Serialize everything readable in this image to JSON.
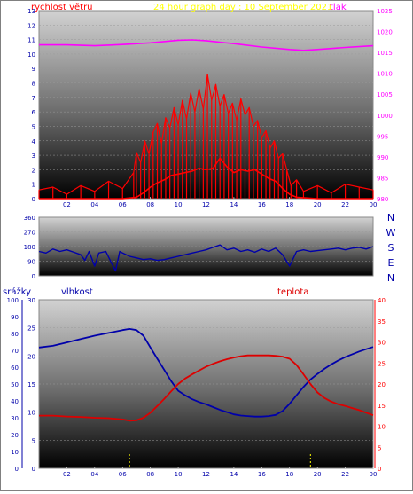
{
  "colors": {
    "wind_speed": "#ff0000",
    "wind_gust": "#ff0000",
    "pressure": "#ff00ff",
    "direction": "#0000aa",
    "humidity": "#0000aa",
    "temperature": "#dd0000",
    "rain": "#ffff00",
    "label_red": "#ff0000",
    "label_yellow": "#ffff00",
    "label_magenta": "#ff00ff",
    "label_blue": "#0000aa",
    "tick_text": "#0000aa"
  },
  "chart_data": [
    {
      "type": "line",
      "panel": "wind",
      "title": "24 hour graph day : 10 September 2021",
      "left_label": "rychlost větru",
      "right_label": "tlak",
      "x_ticks": [
        "02",
        "04",
        "06",
        "08",
        "10",
        "12",
        "14",
        "16",
        "18",
        "20",
        "22",
        "00"
      ],
      "ylim_left": [
        0,
        13
      ],
      "y_ticks_left": [
        "0",
        "1",
        "2",
        "3",
        "4",
        "5",
        "6",
        "7",
        "8",
        "9",
        "10",
        "11",
        "12",
        "13"
      ],
      "ylim_right": [
        980,
        1025
      ],
      "y_ticks_right": [
        "980",
        "985",
        "990",
        "995",
        "1000",
        "1005",
        "1010",
        "1015",
        "1020",
        "1025"
      ],
      "x_range_hours": [
        0,
        24
      ],
      "series": [
        {
          "key": "pressure",
          "axis": "right",
          "x": [
            0,
            2,
            4,
            6,
            8,
            10,
            11,
            12,
            14,
            16,
            18,
            19,
            20,
            22,
            24
          ],
          "y": [
            1016.8,
            1016.8,
            1016.6,
            1016.9,
            1017.3,
            1017.9,
            1018.0,
            1017.8,
            1017.1,
            1016.3,
            1015.7,
            1015.5,
            1015.7,
            1016.2,
            1016.6
          ]
        },
        {
          "key": "wind_gust",
          "axis": "left",
          "x": [
            0,
            1,
            2,
            3,
            4,
            5,
            6,
            6.8,
            7.0,
            7.3,
            7.6,
            7.9,
            8.2,
            8.5,
            8.8,
            9.1,
            9.4,
            9.7,
            10.0,
            10.3,
            10.6,
            10.9,
            11.2,
            11.5,
            11.8,
            12.1,
            12.4,
            12.7,
            13.0,
            13.3,
            13.6,
            13.9,
            14.2,
            14.5,
            14.8,
            15.1,
            15.4,
            15.7,
            16.0,
            16.3,
            16.6,
            16.9,
            17.2,
            17.5,
            17.8,
            18.1,
            18.5,
            19,
            20,
            21,
            22,
            23,
            24
          ],
          "y": [
            0.6,
            0.8,
            0.3,
            0.9,
            0.5,
            1.2,
            0.7,
            1.8,
            3.2,
            2.5,
            4.0,
            3.1,
            4.6,
            5.2,
            3.8,
            5.6,
            4.9,
            6.3,
            5.1,
            6.8,
            5.5,
            7.3,
            6.0,
            7.6,
            6.2,
            8.6,
            6.8,
            7.9,
            6.4,
            7.2,
            5.9,
            6.6,
            5.4,
            6.9,
            5.8,
            6.3,
            5.0,
            5.4,
            4.2,
            4.7,
            3.5,
            4.0,
            2.8,
            3.1,
            2.0,
            0.9,
            1.3,
            0.5,
            0.9,
            0.4,
            1.0,
            0.8,
            0.6
          ]
        },
        {
          "key": "wind_speed",
          "axis": "left",
          "x": [
            0,
            2,
            4,
            6,
            7.0,
            7.5,
            8.0,
            8.5,
            9.0,
            9.5,
            10.0,
            10.5,
            11.0,
            11.5,
            12.0,
            12.5,
            13.0,
            13.5,
            14.0,
            14.5,
            15.0,
            15.5,
            16.0,
            16.5,
            17.0,
            17.5,
            18.0,
            18.5,
            20,
            22,
            24
          ],
          "y": [
            0,
            0,
            0,
            0,
            0.1,
            0.4,
            0.8,
            1.1,
            1.3,
            1.6,
            1.7,
            1.8,
            1.9,
            2.1,
            2.0,
            2.1,
            2.8,
            2.2,
            1.8,
            2.0,
            1.9,
            2.0,
            1.7,
            1.4,
            1.2,
            0.7,
            0.3,
            0.1,
            0,
            0,
            0
          ]
        }
      ]
    },
    {
      "type": "line",
      "panel": "direction",
      "right_labels": [
        "N",
        "W",
        "S",
        "E",
        "N"
      ],
      "ylim": [
        0,
        360
      ],
      "y_ticks": [
        "0",
        "90",
        "180",
        "270",
        "360"
      ],
      "x_range_hours": [
        0,
        24
      ],
      "series": [
        {
          "key": "direction",
          "x": [
            0,
            0.5,
            1,
            1.5,
            2,
            2.5,
            3,
            3.3,
            3.6,
            4,
            4.3,
            4.8,
            5.2,
            5.5,
            5.8,
            6,
            6.5,
            7,
            7.5,
            8,
            8.5,
            9,
            9.5,
            10,
            10.5,
            11,
            11.5,
            12,
            12.5,
            13,
            13.5,
            14,
            14.5,
            15,
            15.5,
            16,
            16.5,
            17,
            17.5,
            18,
            18.5,
            19,
            19.5,
            20,
            20.5,
            21,
            21.5,
            22,
            22.5,
            23,
            23.5,
            24
          ],
          "y": [
            150,
            140,
            165,
            150,
            160,
            145,
            130,
            95,
            150,
            60,
            140,
            150,
            80,
            30,
            150,
            140,
            120,
            110,
            100,
            105,
            95,
            100,
            110,
            120,
            130,
            140,
            150,
            160,
            175,
            190,
            160,
            170,
            150,
            160,
            145,
            165,
            150,
            170,
            130,
            60,
            150,
            160,
            150,
            155,
            160,
            165,
            170,
            160,
            170,
            175,
            165,
            180
          ]
        }
      ]
    },
    {
      "type": "line",
      "panel": "rain_humidity_temperature",
      "labels": {
        "rain": "srážky",
        "humidity": "vlhkost",
        "temperature": "teplota"
      },
      "x_ticks": [
        "02",
        "04",
        "06",
        "08",
        "10",
        "12",
        "14",
        "16",
        "18",
        "20",
        "22",
        "00"
      ],
      "ylim_rain": [
        0,
        100
      ],
      "y_ticks_rain": [
        "0",
        "10",
        "20",
        "30",
        "40",
        "50",
        "60",
        "70",
        "80",
        "90",
        "100"
      ],
      "ylim_shared": [
        0,
        30
      ],
      "y_ticks_shared": [
        "0",
        "5",
        "10",
        "15",
        "20",
        "25",
        "30"
      ],
      "ylim_right": [
        0,
        40
      ],
      "y_ticks_right": [
        "0",
        "5",
        "10",
        "15",
        "20",
        "25",
        "30",
        "35",
        "40"
      ],
      "x_range_hours": [
        0,
        24
      ],
      "series": [
        {
          "key": "humidity",
          "axis": "shared",
          "x": [
            0,
            1,
            2,
            3,
            4,
            5,
            6,
            6.5,
            7,
            7.5,
            8,
            8.5,
            9,
            9.5,
            10,
            10.5,
            11,
            11.5,
            12,
            12.5,
            13,
            13.5,
            14,
            14.5,
            15,
            15.5,
            16,
            16.5,
            17,
            17.5,
            18,
            18.5,
            19,
            19.5,
            20,
            20.5,
            21,
            21.5,
            22,
            22.5,
            23,
            23.5,
            24
          ],
          "y": [
            21.5,
            21.8,
            22.4,
            23.0,
            23.6,
            24.1,
            24.6,
            24.8,
            24.6,
            23.6,
            21.5,
            19.5,
            17.5,
            15.5,
            13.8,
            13.0,
            12.3,
            11.8,
            11.4,
            10.9,
            10.4,
            10.0,
            9.6,
            9.4,
            9.3,
            9.2,
            9.2,
            9.3,
            9.5,
            10.2,
            11.5,
            13.0,
            14.5,
            15.8,
            16.8,
            17.7,
            18.5,
            19.2,
            19.8,
            20.3,
            20.8,
            21.2,
            21.6
          ]
        },
        {
          "key": "temperature",
          "axis": "right",
          "x": [
            0,
            1,
            2,
            3,
            4,
            5,
            6,
            6.5,
            7,
            7.5,
            8,
            8.5,
            9,
            9.5,
            10,
            10.5,
            11,
            11.5,
            12,
            12.5,
            13,
            13.5,
            14,
            14.5,
            15,
            15.5,
            16,
            16.5,
            17,
            17.5,
            18,
            18.5,
            19,
            19.5,
            20,
            20.5,
            21,
            21.5,
            22,
            22.5,
            23,
            23.5,
            24
          ],
          "y": [
            12.5,
            12.5,
            12.3,
            12.2,
            12.0,
            11.9,
            11.6,
            11.3,
            11.4,
            12.0,
            13.2,
            14.8,
            16.5,
            18.3,
            20.0,
            21.3,
            22.3,
            23.2,
            24.1,
            24.8,
            25.4,
            25.9,
            26.3,
            26.6,
            26.8,
            26.8,
            26.8,
            26.8,
            26.7,
            26.5,
            26.0,
            24.5,
            22.3,
            20.0,
            18.0,
            16.7,
            15.8,
            15.2,
            14.8,
            14.3,
            13.8,
            13.2,
            12.6
          ]
        },
        {
          "key": "rain",
          "axis": "rain",
          "x": [
            6.5,
            19.5
          ],
          "y": [
            0,
            0
          ]
        }
      ]
    }
  ]
}
